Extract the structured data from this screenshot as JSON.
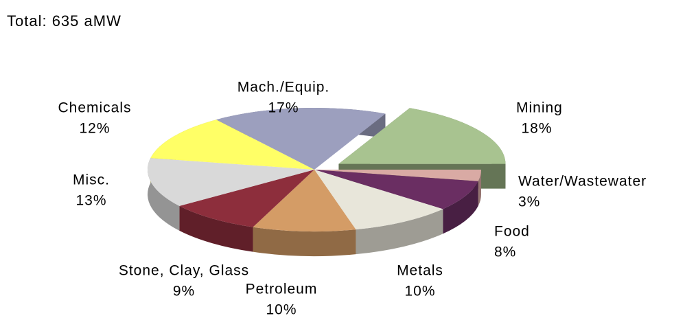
{
  "chart_data": {
    "type": "pie3d",
    "title": "Total: 635 aMW",
    "categories": [
      "Mining",
      "Water/Wastewater",
      "Food",
      "Metals",
      "Petroleum",
      "Stone, Clay, Glass",
      "Misc.",
      "Chemicals",
      "Mach./Equip."
    ],
    "values": [
      18,
      3,
      8,
      10,
      10,
      9,
      13,
      12,
      17
    ],
    "value_labels": [
      "18%",
      "3%",
      "8%",
      "10%",
      "10%",
      "9%",
      "13%",
      "12%",
      "17%"
    ],
    "colors": [
      "#a8c390",
      "#d9aaa4",
      "#6a2e62",
      "#e8e6da",
      "#d49c66",
      "#8d2e3c",
      "#d9d9d9",
      "#ffff66",
      "#9c9fbe"
    ],
    "exploded": [
      "Mining"
    ]
  }
}
